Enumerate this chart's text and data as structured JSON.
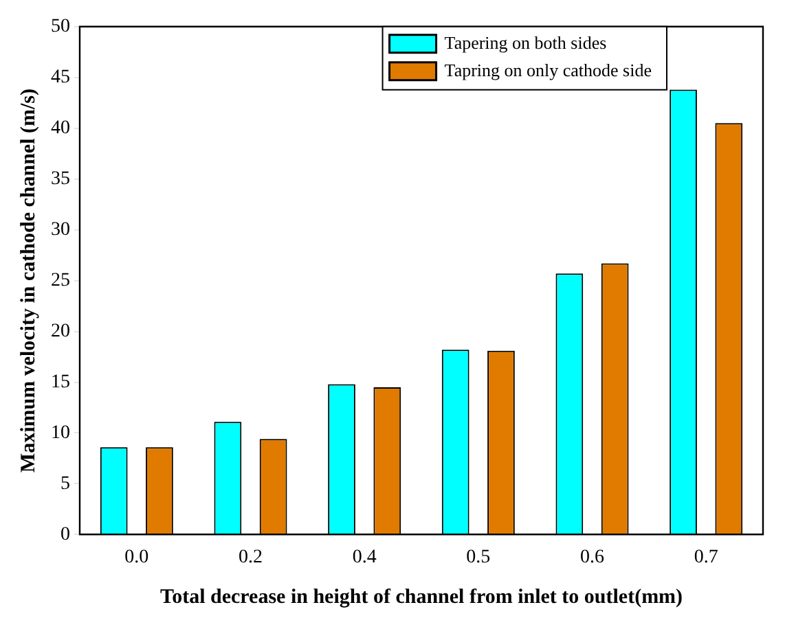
{
  "chart_data": {
    "type": "bar",
    "xlabel": "Total decrease in height of channel from inlet to outlet(mm)",
    "ylabel": "Maximum velocity in cathode channel (m/s)",
    "categories": [
      "0.0",
      "0.2",
      "0.4",
      "0.5",
      "0.6",
      "0.7"
    ],
    "series": [
      {
        "name": "Tapering on both sides",
        "color": "#00ffff",
        "values": [
          8.6,
          11.1,
          14.8,
          18.2,
          25.7,
          43.8
        ]
      },
      {
        "name": "Tapring on only cathode side",
        "color": "#e07b00",
        "values": [
          8.6,
          9.4,
          14.5,
          18.1,
          26.7,
          40.5
        ]
      }
    ],
    "ylim": [
      0,
      50
    ],
    "yticks": [
      0,
      5,
      10,
      15,
      20,
      25,
      30,
      35,
      40,
      45,
      50
    ],
    "grid": false,
    "legend": "top right"
  }
}
